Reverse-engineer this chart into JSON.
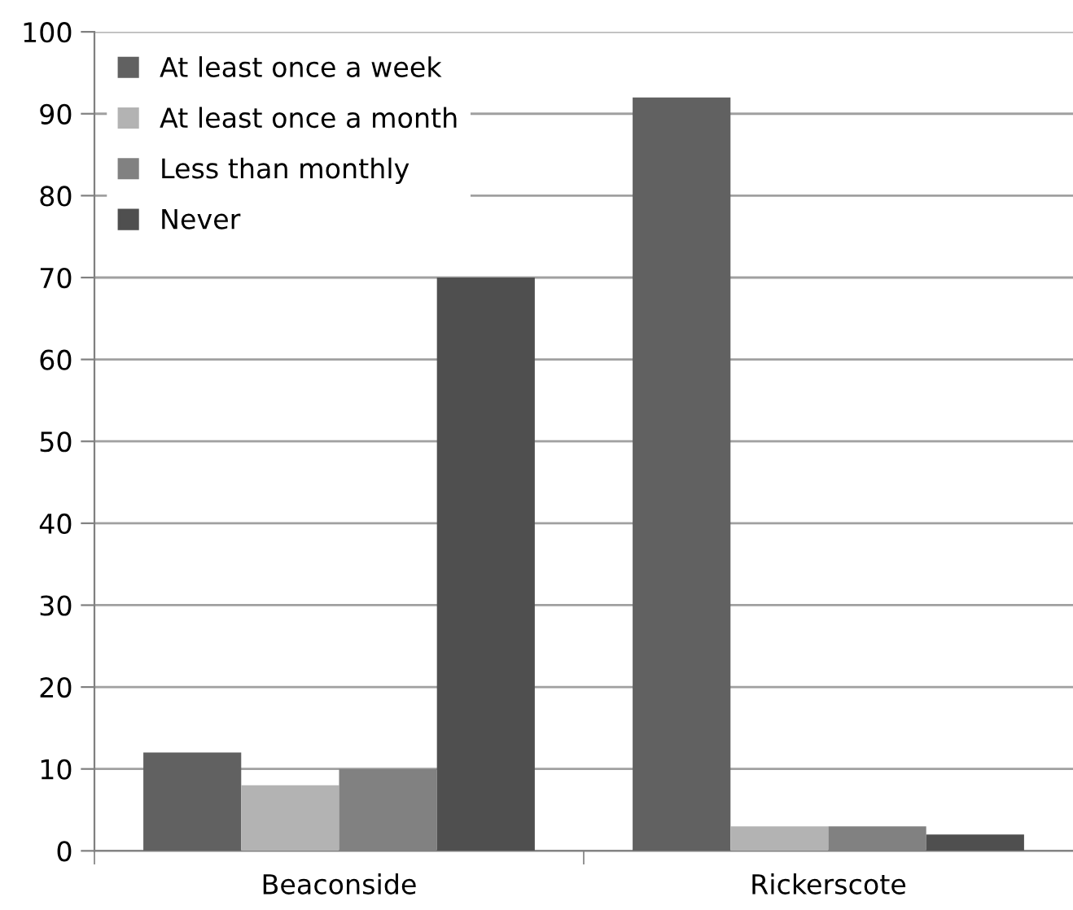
{
  "chart_data": {
    "type": "bar",
    "categories": [
      "Beaconside",
      "Rickerscote"
    ],
    "series": [
      {
        "name": "At least once a week",
        "color": "#616161",
        "values": [
          12,
          92
        ]
      },
      {
        "name": "At least once a month",
        "color": "#b3b3b3",
        "values": [
          8,
          3
        ]
      },
      {
        "name": "Less than monthly",
        "color": "#818181",
        "values": [
          10,
          3
        ]
      },
      {
        "name": "Never",
        "color": "#4f4f4f",
        "values": [
          70,
          2
        ]
      }
    ],
    "ylim": [
      0,
      100
    ],
    "yticks": [
      0,
      10,
      20,
      30,
      40,
      50,
      60,
      70,
      80,
      90,
      100
    ],
    "grid": "y",
    "legend": "top left"
  }
}
